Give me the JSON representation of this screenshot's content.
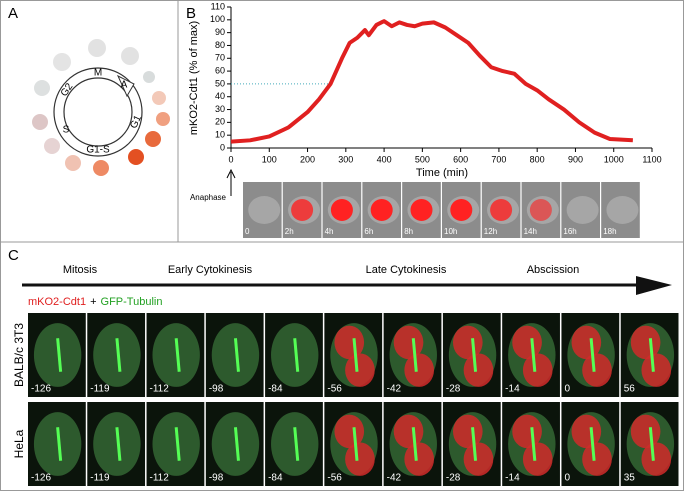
{
  "panels": {
    "a": {
      "label": "A",
      "phases": [
        "M",
        "A",
        "G1",
        "G1-S",
        "S",
        "G2"
      ]
    },
    "b": {
      "label": "B",
      "anaphase": "Anaphase",
      "frames": [
        "0",
        "2h",
        "4h",
        "6h",
        "8h",
        "10h",
        "12h",
        "14h",
        "16h",
        "18h"
      ]
    },
    "c": {
      "label": "C",
      "stages": [
        "Mitosis",
        "Early Cytokinesis",
        "Late Cytokinesis",
        "Abscission"
      ],
      "legend_red": "mKO2-Cdt1",
      "legend_plus": "+",
      "legend_green": "GFP-Tubulin",
      "rows": [
        {
          "name": "BALB/c 3T3",
          "times": [
            "-126",
            "-119",
            "-112",
            "-98",
            "-84",
            "-56",
            "-42",
            "-28",
            "-14",
            "0",
            "56"
          ]
        },
        {
          "name": "HeLa",
          "times": [
            "-126",
            "-119",
            "-112",
            "-98",
            "-84",
            "-56",
            "-42",
            "-28",
            "-14",
            "0",
            "35"
          ]
        }
      ]
    }
  },
  "chart_data": {
    "type": "line",
    "xlabel": "Time (min)",
    "ylabel": "mKO2-Cdt1 (% of max)",
    "color": "#e02020",
    "x": [
      0,
      50,
      100,
      150,
      200,
      230,
      260,
      290,
      310,
      330,
      350,
      360,
      380,
      400,
      420,
      440,
      460,
      480,
      500,
      530,
      560,
      590,
      620,
      650,
      680,
      710,
      740,
      770,
      800,
      830,
      870,
      910,
      950,
      990,
      1050
    ],
    "values": [
      5,
      6,
      9,
      16,
      28,
      38,
      50,
      70,
      82,
      86,
      92,
      88,
      96,
      99,
      95,
      98,
      96,
      95,
      97,
      98,
      94,
      88,
      82,
      72,
      63,
      60,
      58,
      50,
      45,
      38,
      30,
      20,
      12,
      7,
      6
    ],
    "xlim": [
      0,
      1100
    ],
    "xticks": [
      0,
      100,
      200,
      300,
      400,
      500,
      600,
      700,
      800,
      900,
      1000,
      1100
    ],
    "ylim": [
      0,
      110
    ],
    "yticks": [
      0,
      10,
      20,
      30,
      40,
      50,
      60,
      70,
      80,
      90,
      100,
      110
    ]
  }
}
